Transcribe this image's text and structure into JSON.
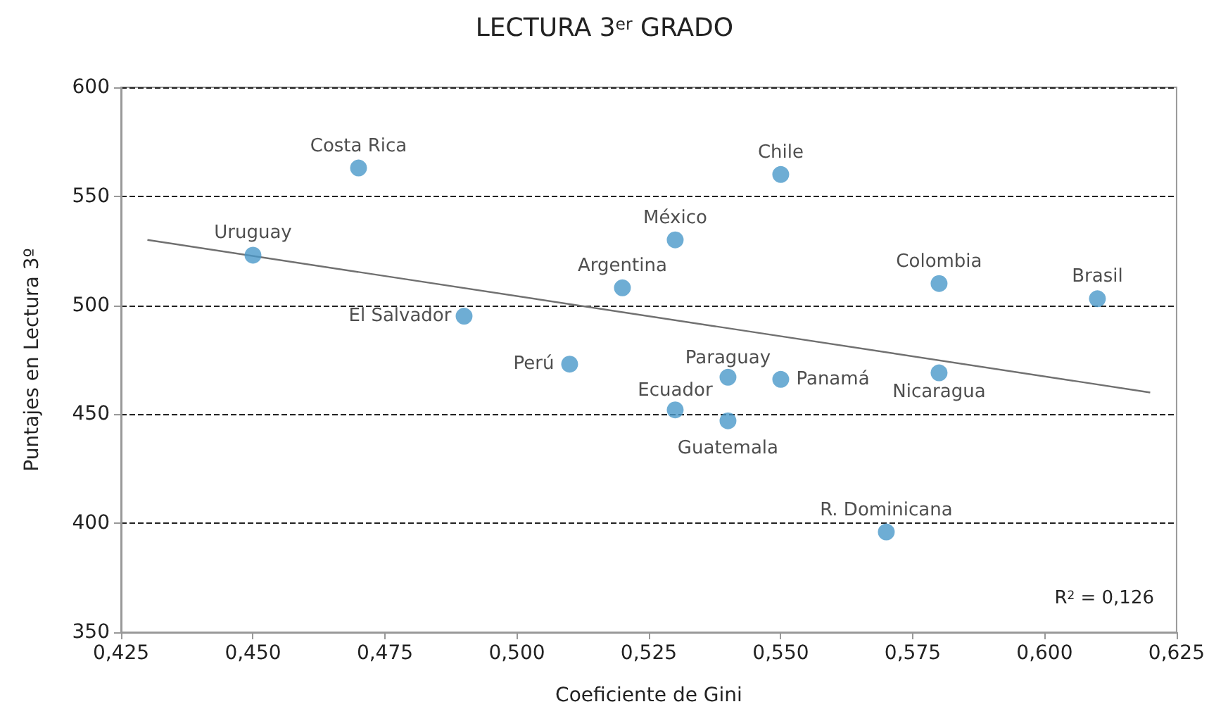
{
  "chart_data": {
    "type": "scatter",
    "title": "LECTURA 3$^{er}$ GRADO",
    "xlabel": "Coeficiente de Gini",
    "ylabel": "Puntajes en Lectura 3º",
    "xlim": [
      0.425,
      0.625
    ],
    "xticks": [
      {
        "value": 0.425,
        "label": "0,425"
      },
      {
        "value": 0.45,
        "label": "0,450"
      },
      {
        "value": 0.475,
        "label": "0,475"
      },
      {
        "value": 0.5,
        "label": "0,500"
      },
      {
        "value": 0.525,
        "label": "0,525"
      },
      {
        "value": 0.55,
        "label": "0,550"
      },
      {
        "value": 0.575,
        "label": "0,575"
      },
      {
        "value": 0.6,
        "label": "0,600"
      },
      {
        "value": 0.625,
        "label": "0,625"
      }
    ],
    "ylim": [
      350,
      600
    ],
    "yticks": [
      350,
      400,
      450,
      500,
      550,
      600
    ],
    "grid": "y",
    "series": [
      {
        "color": "#4a98c9",
        "marker": "circle",
        "x": [
          0.45,
          0.47,
          0.49,
          0.51,
          0.52,
          0.53,
          0.53,
          0.54,
          0.54,
          0.55,
          0.55,
          0.57,
          0.58,
          0.58,
          0.61
        ],
        "values": [
          523,
          563,
          495,
          473,
          508,
          530,
          452,
          467,
          447,
          560,
          466,
          396,
          510,
          469,
          503
        ]
      },
      {
        "type": "line",
        "marker": "none",
        "color": "#707070",
        "x": [
          0.43,
          0.62
        ],
        "values": [
          530,
          460
        ]
      }
    ],
    "annotations": [
      {
        "text": "Uruguay",
        "x": 0.45,
        "y": 523
      },
      {
        "text": "Costa Rica",
        "x": 0.47,
        "y": 563
      },
      {
        "text": "El Salvador",
        "x": 0.49,
        "y": 495
      },
      {
        "text": "Perú",
        "x": 0.51,
        "y": 473
      },
      {
        "text": "Argentina",
        "x": 0.52,
        "y": 508
      },
      {
        "text": "México",
        "x": 0.53,
        "y": 530
      },
      {
        "text": "Ecuador",
        "x": 0.53,
        "y": 452
      },
      {
        "text": "Paraguay",
        "x": 0.54,
        "y": 467
      },
      {
        "text": "Guatemala",
        "x": 0.54,
        "y": 447
      },
      {
        "text": "Chile",
        "x": 0.55,
        "y": 560
      },
      {
        "text": "Panamá",
        "x": 0.55,
        "y": 466
      },
      {
        "text": "R. Dominicana",
        "x": 0.57,
        "y": 396
      },
      {
        "text": "Colombia",
        "x": 0.58,
        "y": 510
      },
      {
        "text": "Nicaragua",
        "x": 0.58,
        "y": 469
      },
      {
        "text": "Brasil",
        "x": 0.61,
        "y": 503
      },
      "R$^{2}$ = 0,126"
    ]
  }
}
